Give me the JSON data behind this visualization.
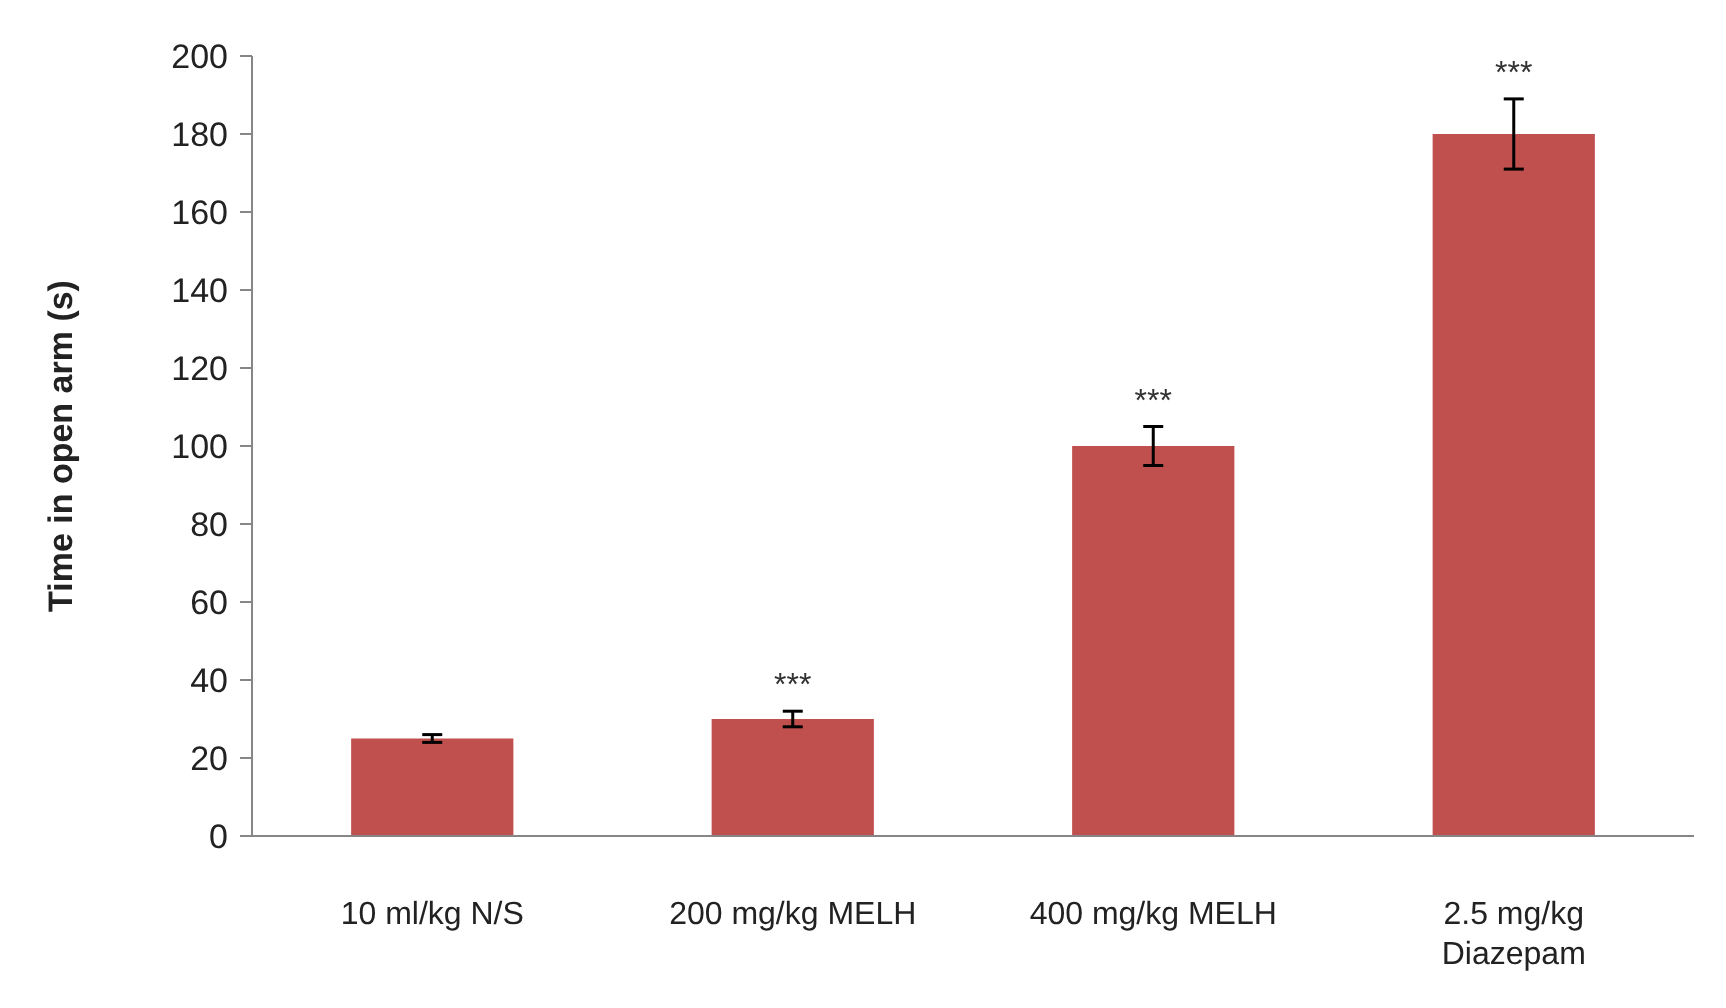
{
  "chart_data": {
    "type": "bar",
    "ylabel": "Time in open arm (s)",
    "categories": [
      "10 ml/kg N/S",
      "200 mg/kg MELH",
      "400 mg/kg MELH",
      "2.5 mg/kg Diazepam"
    ],
    "values": [
      25,
      30,
      100,
      180
    ],
    "errors": [
      1,
      2,
      5,
      9
    ],
    "color": "#c0504d",
    "ylim": [
      0,
      200
    ],
    "yticks": [
      0,
      20,
      40,
      60,
      80,
      100,
      120,
      140,
      160,
      180,
      200
    ],
    "grid": false,
    "annotations": [
      {
        "text": "***",
        "x": "200 mg/kg MELH",
        "y": 32
      },
      {
        "text": "***",
        "x": "400 mg/kg MELH",
        "y": 105
      },
      {
        "text": "***",
        "x": "2.5 mg/kg Diazepam",
        "y": 189
      }
    ]
  }
}
